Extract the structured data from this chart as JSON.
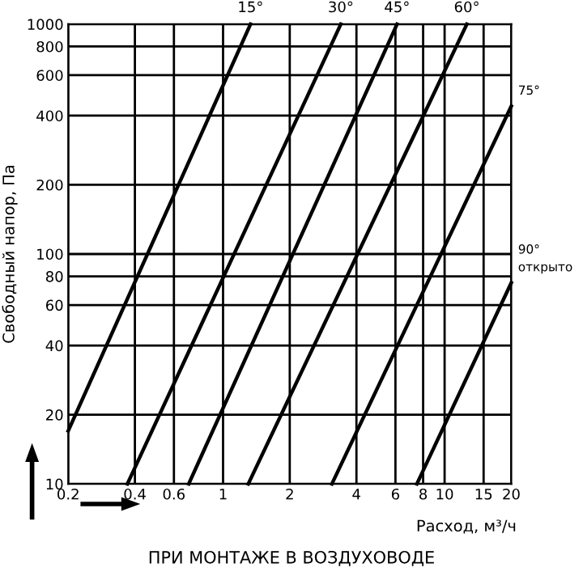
{
  "chart_data": {
    "type": "line",
    "xlabel": "Расход, м³/ч",
    "ylabel": "Свободный напор, Па",
    "annotations": [
      "ПРИ МОНТАЖЕ В ВОЗДУХОВОДЕ"
    ],
    "log": "xy",
    "grid": true,
    "legend": false,
    "marker": "none",
    "line_style": "solid",
    "xlim": [
      0.2,
      20
    ],
    "ylim": [
      10,
      1000
    ],
    "xticks": [
      0.2,
      0.4,
      0.6,
      1,
      2,
      4,
      6,
      8,
      10,
      15,
      20
    ],
    "yticks": [
      10,
      20,
      40,
      60,
      80,
      100,
      200,
      400,
      600,
      800,
      1000
    ],
    "series": [
      {
        "name": "15°",
        "color": "#000000",
        "x": [
          0.2,
          1.33
        ],
        "values": [
          17,
          1000
        ]
      },
      {
        "name": "30°",
        "color": "#000000",
        "x": [
          0.37,
          3.4
        ],
        "values": [
          10,
          1000
        ]
      },
      {
        "name": "45°",
        "color": "#000000",
        "x": [
          0.7,
          6.1
        ],
        "values": [
          10,
          1000
        ]
      },
      {
        "name": "60°",
        "color": "#000000",
        "x": [
          1.3,
          12.6
        ],
        "values": [
          10,
          1000
        ]
      },
      {
        "name": "75°",
        "color": "#000000",
        "x": [
          3.1,
          20
        ],
        "values": [
          10,
          440
        ]
      },
      {
        "name": "90°\nоткрыто",
        "color": "#000000",
        "x": [
          7.5,
          20
        ],
        "values": [
          10,
          75
        ]
      }
    ]
  }
}
